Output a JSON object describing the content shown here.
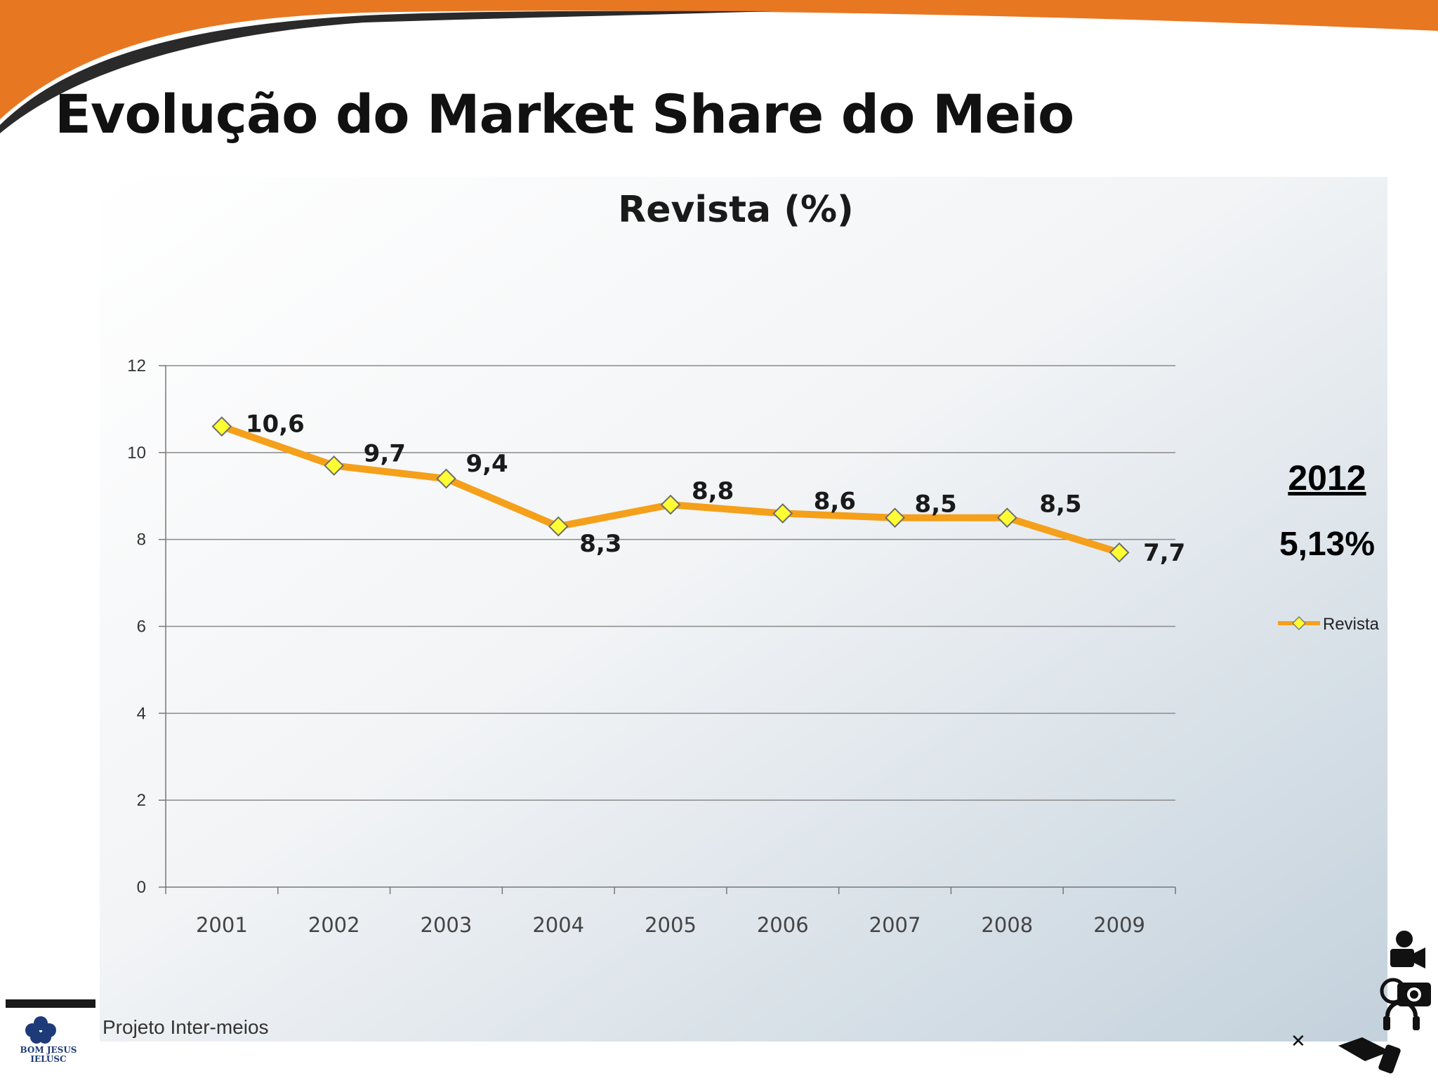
{
  "slide": {
    "title": "Evolução do Market Share do Meio",
    "side_year": "2012",
    "side_value": "5,13%",
    "footer_text": "Projeto Inter-meios",
    "logo_lines": [
      "BOM JESUS",
      "IELUSC"
    ]
  },
  "colors": {
    "accent_orange": "#E87722",
    "line": "#F5A01A",
    "marker": "#FFFF33",
    "header_dark": "#2a2a2a"
  },
  "chart_data": {
    "type": "line",
    "title": "Revista (%)",
    "xlabel": "",
    "ylabel": "",
    "categories": [
      "2001",
      "2002",
      "2003",
      "2004",
      "2005",
      "2006",
      "2007",
      "2008",
      "2009"
    ],
    "series": [
      {
        "name": "Revista",
        "values": [
          10.6,
          9.7,
          9.4,
          8.3,
          8.8,
          8.6,
          8.5,
          8.5,
          7.7
        ],
        "labels": [
          "10,6",
          "9,7",
          "9,4",
          "8,3",
          "8,8",
          "8,6",
          "8,5",
          "8,5",
          "7,7"
        ]
      }
    ],
    "ylim": [
      0,
      12
    ],
    "yticks": [
      0,
      2,
      4,
      6,
      8,
      10,
      12
    ],
    "grid": true,
    "legend": "right"
  }
}
